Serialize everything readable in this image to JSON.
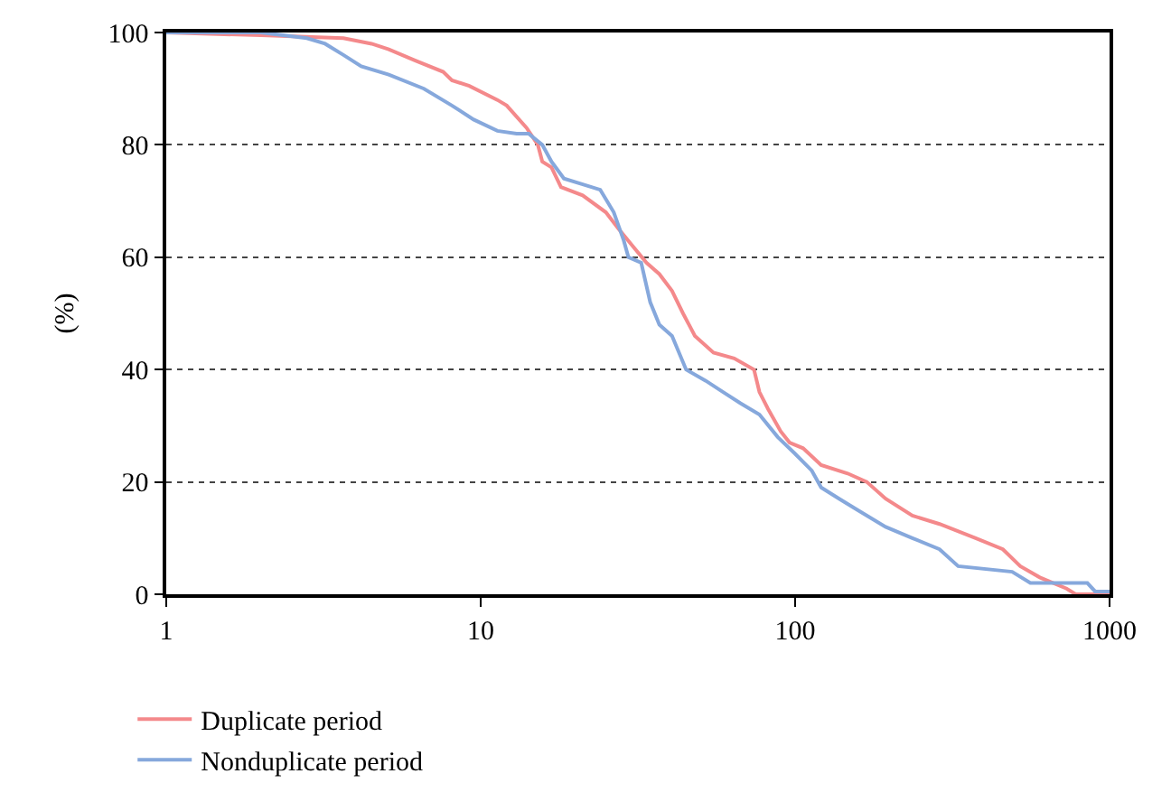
{
  "chart_data": {
    "type": "line",
    "ylabel": "(%)",
    "log": "x",
    "grid": "y",
    "legend": "bottom left",
    "marker": "none",
    "line_style": "solid",
    "xlim": [
      1,
      1000
    ],
    "xticks": [
      1,
      10,
      100,
      1000
    ],
    "ylim": [
      0,
      100
    ],
    "yticks": [
      0,
      20,
      40,
      60,
      80,
      100
    ],
    "series": [
      {
        "name": "Duplicate period",
        "color": "#f4898b",
        "x": [
          1,
          2,
          3.66,
          4.5,
          5.1,
          6.2,
          7.6,
          8.1,
          9.2,
          11.3,
          12.1,
          14,
          15.2,
          15.7,
          16.8,
          18,
          21.1,
          25,
          27.5,
          30.4,
          33.7,
          37,
          40.6,
          44,
          48,
          55,
          64,
          74,
          77,
          82,
          90,
          96,
          106,
          121,
          147,
          169,
          194,
          236,
          288,
          375,
          458,
          520,
          600,
          730,
          780,
          1000
        ],
        "values": [
          100,
          99.5,
          99,
          98,
          97,
          95,
          93,
          91.5,
          90.5,
          88,
          87,
          83,
          80,
          77,
          76,
          72.5,
          71,
          68,
          65,
          62,
          59,
          57,
          54,
          50,
          46,
          43,
          42,
          40,
          36,
          33,
          29,
          27,
          26,
          23,
          21.5,
          20,
          17,
          14,
          12.5,
          10,
          8,
          5,
          3,
          1,
          0,
          0
        ]
      },
      {
        "name": "Nonduplicate period",
        "color": "#86a8dc",
        "x": [
          1,
          2,
          2.8,
          3.2,
          3.66,
          4.17,
          5.1,
          6.6,
          8.1,
          9.5,
          11.3,
          13,
          14.2,
          15.7,
          16.8,
          18.4,
          21,
          24,
          26.5,
          28.5,
          29.5,
          32.4,
          34.6,
          37,
          40.6,
          45,
          52,
          59,
          67,
          77,
          88,
          100,
          113,
          121,
          138,
          158,
          194,
          236,
          288,
          330,
          490,
          560,
          850,
          900,
          1000
        ],
        "values": [
          100,
          100,
          99,
          98,
          96,
          94,
          92.5,
          90,
          87,
          84.5,
          82.5,
          82,
          82,
          80,
          77,
          74,
          73,
          72,
          68,
          63,
          60,
          59,
          52,
          48,
          46,
          40,
          38,
          36,
          34,
          32,
          28,
          25,
          22,
          19,
          17,
          15,
          12,
          10,
          8,
          5,
          4,
          2,
          2,
          0.5,
          0.5
        ]
      }
    ]
  }
}
